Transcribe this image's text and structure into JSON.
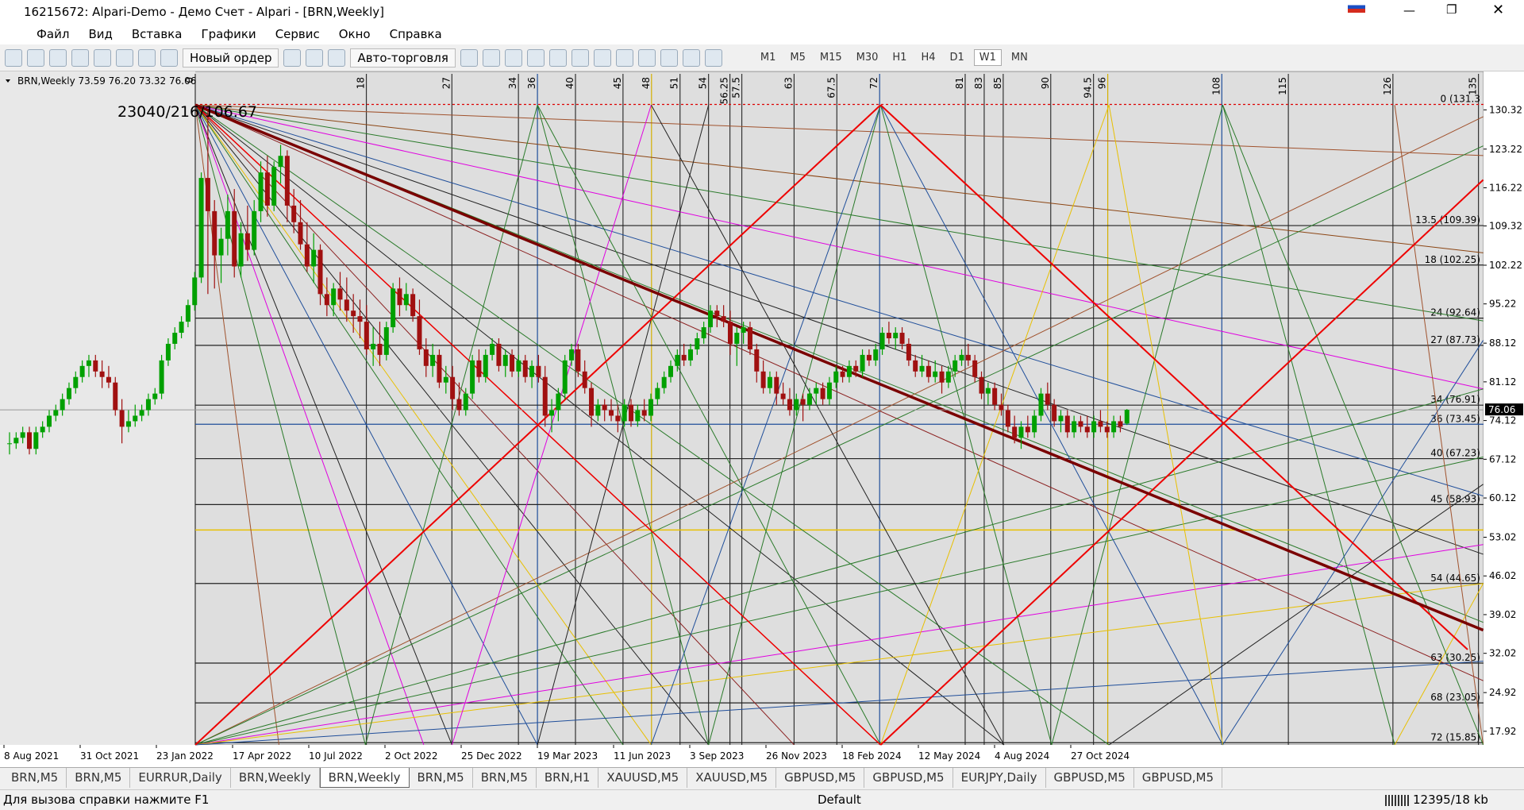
{
  "window": {
    "title": "16215672: Alpari-Demo - Демо Счет - Alpari - [BRN,Weekly]"
  },
  "menu": [
    "Файл",
    "Вид",
    "Вставка",
    "Графики",
    "Сервис",
    "Окно",
    "Справка"
  ],
  "toolbar": {
    "new_order": "Новый ордер",
    "auto_trading": "Авто-торговля",
    "timeframes": [
      "M1",
      "M5",
      "M15",
      "M30",
      "H1",
      "H4",
      "D1",
      "W1",
      "MN"
    ],
    "active_timeframe": 7
  },
  "chart": {
    "info": "BRN,Weekly  73.59 76.20 73.32 76.06",
    "annotation": "23040/216/106.67",
    "ylim": [
      15.46,
      136.83
    ],
    "price_ticks": [
      130.32,
      123.22,
      116.22,
      109.32,
      102.22,
      95.22,
      88.12,
      81.12,
      74.12,
      67.12,
      60.12,
      53.02,
      46.02,
      39.02,
      32.02,
      24.92,
      17.92
    ],
    "current_price": 76.06,
    "time_labels": [
      "8 Aug 2021",
      "31 Oct 2021",
      "23 Jan 2022",
      "17 Apr 2022",
      "10 Jul 2022",
      "2 Oct 2022",
      "25 Dec 2022",
      "19 Mar 2023",
      "11 Jun 2023",
      "3 Sep 2023",
      "26 Nov 2023",
      "18 Feb 2024",
      "12 May 2024",
      "4 Aug 2024",
      "27 Oct 2024"
    ],
    "gann_time": [
      0,
      18,
      27,
      34,
      36,
      40,
      45,
      48,
      51,
      54,
      56.25,
      57.5,
      63,
      67.5,
      72,
      81,
      83,
      85,
      90,
      94.5,
      96,
      108,
      115,
      126,
      135
    ],
    "gann_levels": [
      {
        "value": 131.3,
        "label": "0 (131.3"
      },
      {
        "value": 109.39,
        "label": "13.5 (109.39)"
      },
      {
        "value": 102.25,
        "label": "18 (102.25)"
      },
      {
        "value": 92.64,
        "label": "24 (92.64)"
      },
      {
        "value": 87.73,
        "label": "27 (87.73)"
      },
      {
        "value": 76.91,
        "label": "34 (76.91)"
      },
      {
        "value": 73.45,
        "label": "36 (73.45)"
      },
      {
        "value": 67.23,
        "label": "40 (67.23)"
      },
      {
        "value": 58.93,
        "label": "45 (58.93)"
      },
      {
        "value": 44.65,
        "label": "54 (44.65)"
      },
      {
        "value": 30.25,
        "label": "63 (30.25)"
      },
      {
        "value": 23.05,
        "label": "68 (23.05)"
      },
      {
        "value": 15.85,
        "label": "72 (15.85)"
      }
    ],
    "up_color": "#00a000",
    "down_color": "#a01010",
    "candles": [
      [
        70,
        72,
        68,
        70
      ],
      [
        70,
        72,
        69,
        71
      ],
      [
        71,
        73,
        70,
        72
      ],
      [
        72,
        73,
        68,
        69
      ],
      [
        69,
        73,
        68,
        72
      ],
      [
        72,
        74,
        71,
        73
      ],
      [
        73,
        76,
        72,
        75
      ],
      [
        75,
        77,
        74,
        76
      ],
      [
        76,
        79,
        75,
        78
      ],
      [
        78,
        81,
        77,
        80
      ],
      [
        80,
        83,
        79,
        82
      ],
      [
        82,
        85,
        81,
        84
      ],
      [
        84,
        86,
        82,
        85
      ],
      [
        85,
        86,
        82,
        83
      ],
      [
        83,
        85,
        80,
        82
      ],
      [
        82,
        84,
        80,
        81
      ],
      [
        81,
        82,
        75,
        76
      ],
      [
        76,
        78,
        70,
        73
      ],
      [
        73,
        76,
        72,
        74
      ],
      [
        74,
        77,
        73,
        75
      ],
      [
        75,
        77,
        74,
        76
      ],
      [
        76,
        79,
        75,
        78
      ],
      [
        78,
        80,
        77,
        79
      ],
      [
        79,
        86,
        78,
        85
      ],
      [
        85,
        89,
        84,
        88
      ],
      [
        88,
        91,
        87,
        90
      ],
      [
        90,
        93,
        89,
        92
      ],
      [
        92,
        96,
        91,
        95
      ],
      [
        95,
        101,
        94,
        100
      ],
      [
        100,
        119,
        99,
        118
      ],
      [
        118,
        130,
        97,
        112
      ],
      [
        112,
        114,
        98,
        104
      ],
      [
        104,
        109,
        99,
        107
      ],
      [
        107,
        115,
        104,
        112
      ],
      [
        112,
        116,
        100,
        102
      ],
      [
        102,
        110,
        100,
        108
      ],
      [
        108,
        113,
        103,
        105
      ],
      [
        105,
        114,
        104,
        112
      ],
      [
        112,
        121,
        110,
        119
      ],
      [
        119,
        122,
        111,
        113
      ],
      [
        113,
        121,
        112,
        120
      ],
      [
        120,
        124,
        117,
        122
      ],
      [
        122,
        123,
        110,
        113
      ],
      [
        113,
        116,
        108,
        110
      ],
      [
        110,
        114,
        105,
        106
      ],
      [
        106,
        110,
        101,
        102
      ],
      [
        102,
        108,
        99,
        105
      ],
      [
        105,
        106,
        95,
        97
      ],
      [
        97,
        100,
        93,
        95
      ],
      [
        95,
        99,
        93,
        98
      ],
      [
        98,
        101,
        94,
        96
      ],
      [
        96,
        100,
        92,
        94
      ],
      [
        94,
        97,
        90,
        93
      ],
      [
        93,
        96,
        89,
        92
      ],
      [
        92,
        95,
        86,
        87
      ],
      [
        87,
        91,
        84,
        88
      ],
      [
        88,
        92,
        84,
        86
      ],
      [
        86,
        92,
        85,
        91
      ],
      [
        91,
        99,
        90,
        98
      ],
      [
        98,
        100,
        93,
        95
      ],
      [
        95,
        99,
        94,
        97
      ],
      [
        97,
        98,
        92,
        93
      ],
      [
        93,
        96,
        86,
        87
      ],
      [
        87,
        89,
        82,
        84
      ],
      [
        84,
        88,
        82,
        86
      ],
      [
        86,
        87,
        80,
        81
      ],
      [
        81,
        84,
        79,
        82
      ],
      [
        82,
        84,
        76,
        78
      ],
      [
        78,
        81,
        75,
        76
      ],
      [
        76,
        80,
        75,
        79
      ],
      [
        79,
        86,
        78,
        85
      ],
      [
        85,
        87,
        81,
        82
      ],
      [
        82,
        87,
        81,
        86
      ],
      [
        86,
        89,
        85,
        88
      ],
      [
        88,
        89,
        83,
        84
      ],
      [
        84,
        87,
        82,
        86
      ],
      [
        86,
        87,
        82,
        83
      ],
      [
        83,
        86,
        82,
        85
      ],
      [
        85,
        86,
        81,
        82
      ],
      [
        82,
        85,
        80,
        84
      ],
      [
        84,
        86,
        81,
        82
      ],
      [
        82,
        84,
        73,
        75
      ],
      [
        75,
        78,
        72,
        76
      ],
      [
        76,
        80,
        74,
        79
      ],
      [
        79,
        86,
        78,
        85
      ],
      [
        85,
        88,
        84,
        87
      ],
      [
        87,
        88,
        82,
        83
      ],
      [
        83,
        85,
        79,
        80
      ],
      [
        80,
        81,
        73,
        75
      ],
      [
        75,
        78,
        74,
        77
      ],
      [
        77,
        78,
        74,
        76
      ],
      [
        76,
        78,
        74,
        75
      ],
      [
        75,
        77,
        72,
        74
      ],
      [
        74,
        78,
        73,
        77
      ],
      [
        77,
        78,
        73,
        74
      ],
      [
        74,
        77,
        73,
        76
      ],
      [
        76,
        78,
        74,
        75
      ],
      [
        75,
        79,
        74,
        78
      ],
      [
        78,
        81,
        77,
        80
      ],
      [
        80,
        83,
        79,
        82
      ],
      [
        82,
        85,
        81,
        84
      ],
      [
        84,
        87,
        83,
        86
      ],
      [
        86,
        88,
        84,
        85
      ],
      [
        85,
        88,
        84,
        87
      ],
      [
        87,
        90,
        86,
        89
      ],
      [
        89,
        92,
        88,
        91
      ],
      [
        91,
        95,
        90,
        94
      ],
      [
        94,
        95,
        91,
        93
      ],
      [
        93,
        95,
        91,
        92
      ],
      [
        92,
        94,
        86,
        88
      ],
      [
        88,
        91,
        84,
        90
      ],
      [
        90,
        92,
        88,
        91
      ],
      [
        91,
        92,
        86,
        87
      ],
      [
        87,
        88,
        81,
        83
      ],
      [
        83,
        85,
        79,
        80
      ],
      [
        80,
        83,
        79,
        82
      ],
      [
        82,
        83,
        77,
        79
      ],
      [
        79,
        81,
        77,
        78
      ],
      [
        78,
        80,
        75,
        76
      ],
      [
        76,
        79,
        75,
        78
      ],
      [
        78,
        79,
        74,
        77
      ],
      [
        77,
        80,
        76,
        79
      ],
      [
        79,
        81,
        77,
        80
      ],
      [
        80,
        81,
        77,
        78
      ],
      [
        78,
        82,
        77,
        81
      ],
      [
        81,
        84,
        80,
        83
      ],
      [
        83,
        84,
        81,
        82
      ],
      [
        82,
        85,
        81,
        84
      ],
      [
        84,
        85,
        82,
        83
      ],
      [
        83,
        87,
        82,
        86
      ],
      [
        86,
        87,
        84,
        85
      ],
      [
        85,
        88,
        84,
        87
      ],
      [
        87,
        91,
        86,
        90
      ],
      [
        90,
        92,
        88,
        89
      ],
      [
        89,
        91,
        87,
        90
      ],
      [
        90,
        91,
        87,
        88
      ],
      [
        88,
        89,
        84,
        85
      ],
      [
        85,
        86,
        82,
        83
      ],
      [
        83,
        86,
        82,
        84
      ],
      [
        84,
        85,
        81,
        82
      ],
      [
        82,
        85,
        81,
        83
      ],
      [
        83,
        84,
        79,
        81
      ],
      [
        81,
        84,
        80,
        83
      ],
      [
        83,
        86,
        82,
        85
      ],
      [
        85,
        87,
        84,
        86
      ],
      [
        86,
        88,
        84,
        85
      ],
      [
        85,
        86,
        81,
        82
      ],
      [
        82,
        83,
        78,
        79
      ],
      [
        79,
        81,
        77,
        80
      ],
      [
        80,
        81,
        76,
        77
      ],
      [
        77,
        79,
        75,
        76
      ],
      [
        76,
        77,
        72,
        73
      ],
      [
        73,
        75,
        70,
        71
      ],
      [
        71,
        74,
        69,
        73
      ],
      [
        73,
        75,
        71,
        72
      ],
      [
        72,
        76,
        71,
        75
      ],
      [
        75,
        80,
        74,
        79
      ],
      [
        79,
        81,
        76,
        77
      ],
      [
        77,
        78,
        73,
        74
      ],
      [
        74,
        76,
        72,
        75
      ],
      [
        75,
        76,
        71,
        72
      ],
      [
        72,
        75,
        71,
        74
      ],
      [
        74,
        75,
        72,
        73
      ],
      [
        73,
        75,
        71,
        72
      ],
      [
        72,
        75,
        71,
        74
      ],
      [
        74,
        76,
        72,
        73
      ],
      [
        73,
        74,
        71,
        72
      ],
      [
        72,
        75,
        71,
        74
      ],
      [
        74,
        75,
        72,
        73
      ],
      [
        73.59,
        76.2,
        73.32,
        76.06
      ]
    ]
  },
  "tabs": [
    "BRN,M5",
    "BRN,M5",
    "EURRUR,Daily",
    "BRN,Weekly",
    "BRN,Weekly",
    "BRN,M5",
    "BRN,M5",
    "BRN,H1",
    "XAUUSD,M5",
    "XAUUSD,M5",
    "GBPUSD,M5",
    "GBPUSD,M5",
    "EURJPY,Daily",
    "GBPUSD,M5",
    "GBPUSD,M5"
  ],
  "active_tab": 4,
  "status": {
    "help": "Для вызова справки нажмите F1",
    "profile": "Default",
    "traffic": "12395/18 kb"
  }
}
